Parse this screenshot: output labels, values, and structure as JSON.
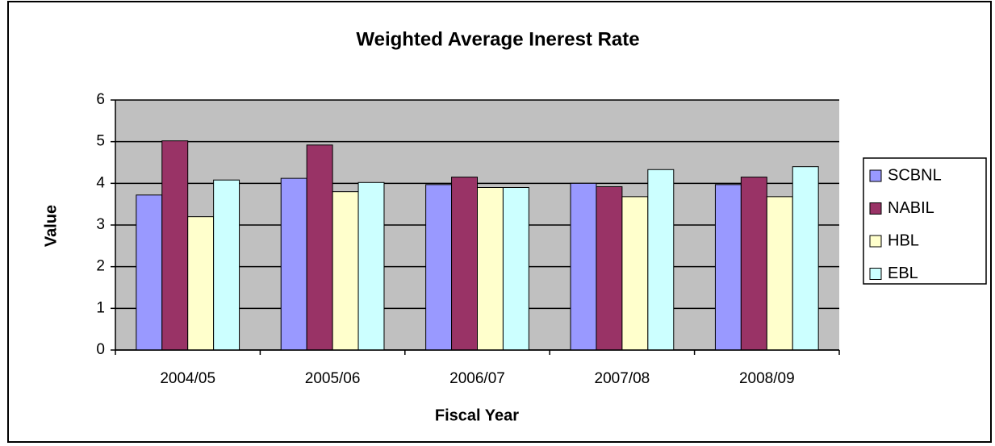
{
  "chart_data": {
    "type": "bar",
    "title": "Weighted Average Ineres‍t Rate",
    "x_label": "Fiscal Year",
    "y_label": "Value",
    "categories": [
      "2004/05",
      "2005/06",
      "2006/07",
      "2007/08",
      "2008/09"
    ],
    "series": [
      {
        "name": "SCBNL",
        "color": "#9999ff",
        "values": [
          3.72,
          4.12,
          3.97,
          4.0,
          3.97
        ]
      },
      {
        "name": "NABIL",
        "color": "#993366",
        "values": [
          5.02,
          4.92,
          4.15,
          3.92,
          4.15
        ]
      },
      {
        "name": "HBL",
        "color": "#ffffcc",
        "values": [
          3.2,
          3.8,
          3.9,
          3.68,
          3.68
        ]
      },
      {
        "name": "EBL",
        "color": "#ccffff",
        "values": [
          4.08,
          4.02,
          3.9,
          4.33,
          4.4
        ]
      }
    ],
    "ylim": [
      0,
      6
    ],
    "yticks": [
      0,
      1,
      2,
      3,
      4,
      5,
      6
    ],
    "grid": true,
    "legend": "right",
    "plot_background": "#c0c0c0"
  }
}
